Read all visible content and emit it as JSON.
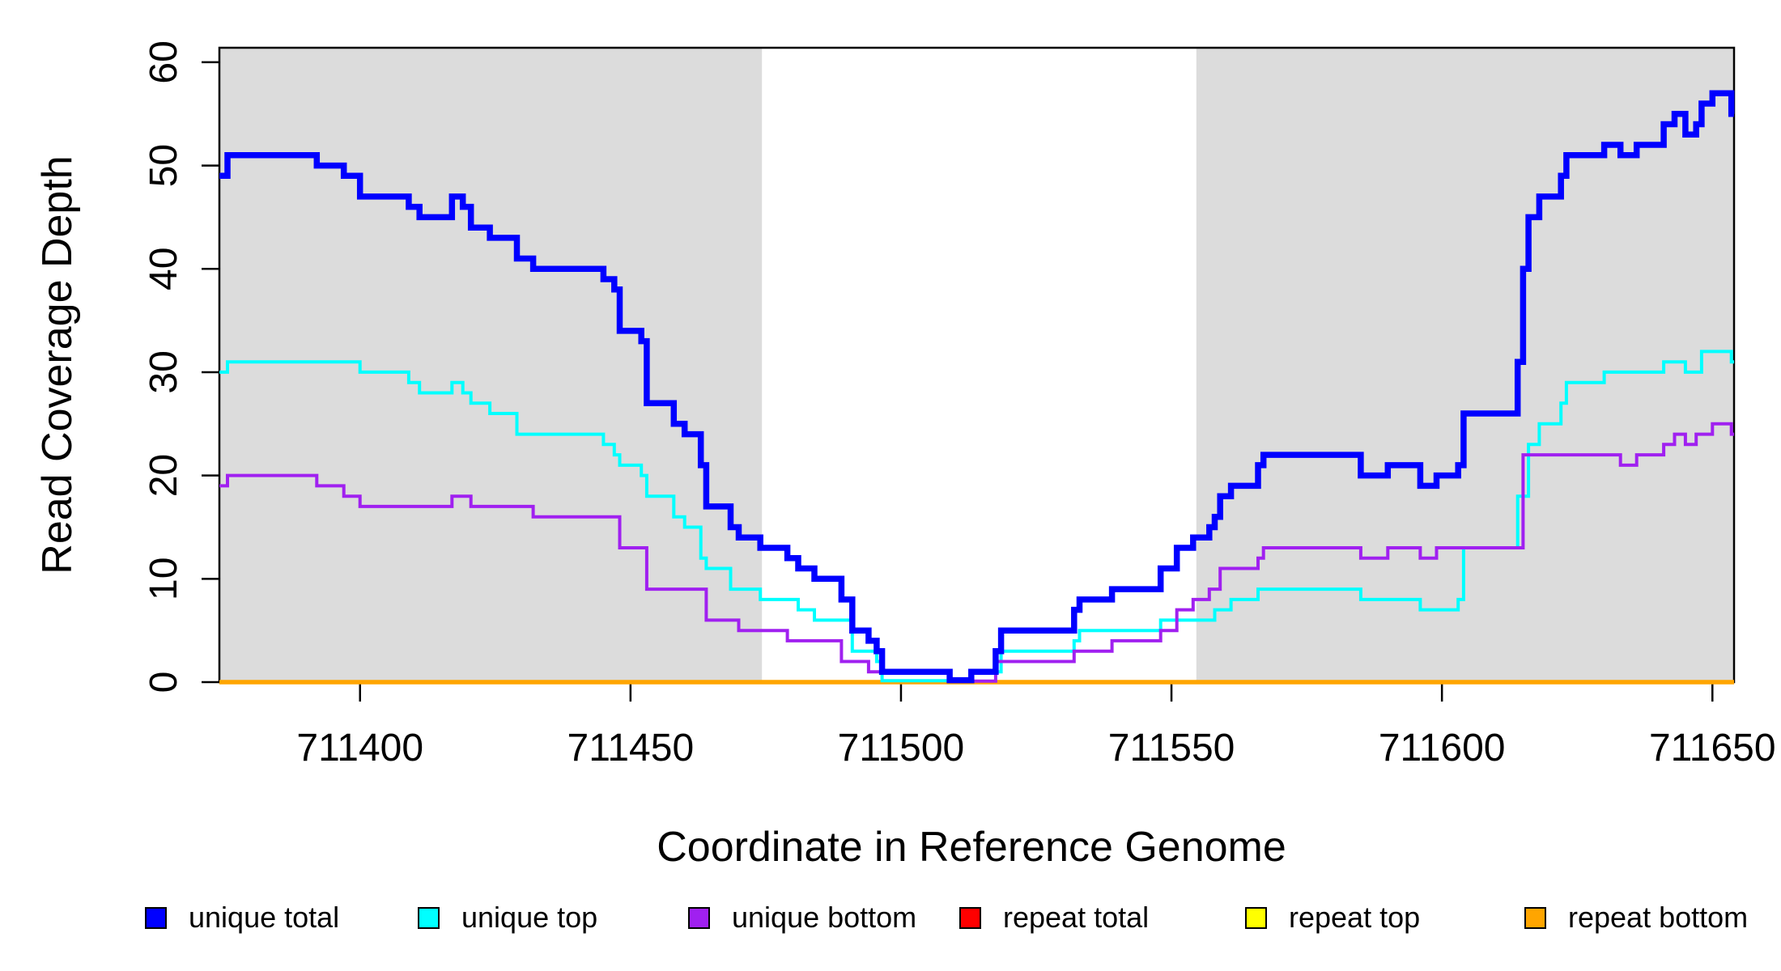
{
  "chart_data": {
    "type": "line",
    "subtype": "step-coverage-plot",
    "title": "",
    "xlabel": "Coordinate in Reference Genome",
    "ylabel": "Read Coverage Depth",
    "xlim": [
      711374,
      711654
    ],
    "ylim": [
      0,
      61.4
    ],
    "x_ticks": [
      711400,
      711450,
      711500,
      711550,
      711600,
      711650
    ],
    "y_ticks": [
      0,
      10,
      20,
      30,
      40,
      50,
      60
    ],
    "grid": "off",
    "legend_position": "bottom",
    "background_color": "#FFFFFF",
    "shaded_regions": [
      {
        "x0": 711374,
        "x1": 711474.3,
        "color": "#DCDCDC"
      },
      {
        "x0": 711554.6,
        "x1": 711654,
        "color": "#DCDCDC"
      }
    ],
    "series": [
      {
        "name": "repeat total",
        "color": "#FF0000",
        "width": 4,
        "points": [
          [
            711374,
            0
          ]
        ]
      },
      {
        "name": "repeat top",
        "color": "#FFFF00",
        "width": 4,
        "points": [
          [
            711374,
            0
          ]
        ]
      },
      {
        "name": "repeat bottom",
        "color": "#FFA500",
        "width": 5.5,
        "points": [
          [
            711374,
            0
          ]
        ]
      },
      {
        "name": "unique top",
        "color": "#00FFFF",
        "width": 4,
        "points": [
          [
            711374,
            30
          ],
          [
            711375.5,
            31
          ],
          [
            711400,
            30
          ],
          [
            711409,
            29
          ],
          [
            711411,
            28
          ],
          [
            711417,
            29
          ],
          [
            711419,
            28
          ],
          [
            711420.5,
            27
          ],
          [
            711424,
            26
          ],
          [
            711429,
            24
          ],
          [
            711445,
            23
          ],
          [
            711447,
            22
          ],
          [
            711448,
            21
          ],
          [
            711452,
            20
          ],
          [
            711453,
            18
          ],
          [
            711458,
            16
          ],
          [
            711460,
            15
          ],
          [
            711463,
            12
          ],
          [
            711464,
            11
          ],
          [
            711468.5,
            9
          ],
          [
            711474,
            8
          ],
          [
            711481,
            7
          ],
          [
            711484,
            6
          ],
          [
            711491,
            3
          ],
          [
            711495.5,
            2
          ],
          [
            711496.5,
            0
          ],
          [
            711513,
            1
          ],
          [
            711518.5,
            3
          ],
          [
            711532,
            4
          ],
          [
            711533,
            5
          ],
          [
            711548,
            6
          ],
          [
            711558,
            7
          ],
          [
            711561,
            8
          ],
          [
            711566,
            9
          ],
          [
            711585,
            8
          ],
          [
            711596,
            7
          ],
          [
            711603,
            8
          ],
          [
            711604,
            13
          ],
          [
            711614,
            18
          ],
          [
            711616,
            23
          ],
          [
            711618,
            25
          ],
          [
            711622,
            27
          ],
          [
            711623,
            29
          ],
          [
            711630,
            30
          ],
          [
            711641,
            31
          ],
          [
            711645,
            30
          ],
          [
            711648,
            32
          ],
          [
            711653.5,
            31
          ]
        ]
      },
      {
        "name": "unique bottom",
        "color": "#A020F0",
        "width": 4,
        "points": [
          [
            711374,
            19
          ],
          [
            711375.5,
            20
          ],
          [
            711392,
            19
          ],
          [
            711397,
            18
          ],
          [
            711400,
            17
          ],
          [
            711417,
            18
          ],
          [
            711420.5,
            17
          ],
          [
            711432,
            16
          ],
          [
            711448,
            13
          ],
          [
            711453,
            9
          ],
          [
            711464,
            6
          ],
          [
            711470,
            5
          ],
          [
            711479,
            4
          ],
          [
            711489,
            2
          ],
          [
            711494,
            1
          ],
          [
            711509,
            0
          ],
          [
            711517.5,
            2
          ],
          [
            711532,
            3
          ],
          [
            711539,
            4
          ],
          [
            711548,
            5
          ],
          [
            711551,
            7
          ],
          [
            711554,
            8
          ],
          [
            711557,
            9
          ],
          [
            711559,
            11
          ],
          [
            711566,
            12
          ],
          [
            711567,
            13
          ],
          [
            711585,
            12
          ],
          [
            711590,
            13
          ],
          [
            711596,
            12
          ],
          [
            711599,
            13
          ],
          [
            711615,
            22
          ],
          [
            711633,
            21
          ],
          [
            711636,
            22
          ],
          [
            711641,
            23
          ],
          [
            711643,
            24
          ],
          [
            711645,
            23
          ],
          [
            711647,
            24
          ],
          [
            711650,
            25
          ],
          [
            711653.5,
            24
          ]
        ]
      },
      {
        "name": "unique total",
        "color": "#0000FF",
        "width": 7.5,
        "points": [
          [
            711374,
            49
          ],
          [
            711375.5,
            51
          ],
          [
            711392,
            50
          ],
          [
            711397,
            49
          ],
          [
            711400,
            47
          ],
          [
            711409,
            46
          ],
          [
            711411,
            45
          ],
          [
            711417,
            47
          ],
          [
            711419,
            46
          ],
          [
            711420.5,
            44
          ],
          [
            711424,
            43
          ],
          [
            711429,
            41
          ],
          [
            711432,
            40
          ],
          [
            711445,
            39
          ],
          [
            711447,
            38
          ],
          [
            711448,
            34
          ],
          [
            711452,
            33
          ],
          [
            711453,
            27
          ],
          [
            711458,
            25
          ],
          [
            711460,
            24
          ],
          [
            711463,
            21
          ],
          [
            711464,
            17
          ],
          [
            711468.5,
            15
          ],
          [
            711470,
            14
          ],
          [
            711474,
            13
          ],
          [
            711479,
            12
          ],
          [
            711481,
            11
          ],
          [
            711484,
            10
          ],
          [
            711489,
            8
          ],
          [
            711491,
            5
          ],
          [
            711494,
            4
          ],
          [
            711495.5,
            3
          ],
          [
            711496.5,
            1
          ],
          [
            711509,
            0
          ],
          [
            711513,
            1
          ],
          [
            711517.5,
            3
          ],
          [
            711518.5,
            5
          ],
          [
            711532,
            7
          ],
          [
            711533,
            8
          ],
          [
            711539,
            9
          ],
          [
            711548,
            11
          ],
          [
            711551,
            13
          ],
          [
            711554,
            14
          ],
          [
            711557,
            15
          ],
          [
            711558,
            16
          ],
          [
            711559,
            18
          ],
          [
            711561,
            19
          ],
          [
            711566,
            21
          ],
          [
            711567,
            22
          ],
          [
            711585,
            20
          ],
          [
            711590,
            21
          ],
          [
            711596,
            19
          ],
          [
            711599,
            20
          ],
          [
            711603,
            21
          ],
          [
            711604,
            26
          ],
          [
            711614,
            31
          ],
          [
            711615,
            40
          ],
          [
            711616,
            45
          ],
          [
            711618,
            47
          ],
          [
            711622,
            49
          ],
          [
            711623,
            51
          ],
          [
            711630,
            52
          ],
          [
            711633,
            51
          ],
          [
            711636,
            52
          ],
          [
            711641,
            54
          ],
          [
            711643,
            55
          ],
          [
            711645,
            53
          ],
          [
            711647,
            54
          ],
          [
            711648,
            56
          ],
          [
            711650,
            57
          ],
          [
            711653.5,
            55
          ]
        ]
      }
    ],
    "legend": {
      "items": [
        {
          "label": "unique total",
          "color": "#0000FF"
        },
        {
          "label": "unique top",
          "color": "#00FFFF"
        },
        {
          "label": "unique bottom",
          "color": "#A020F0"
        },
        {
          "label": "repeat total",
          "color": "#FF0000"
        },
        {
          "label": "repeat top",
          "color": "#FFFF00"
        },
        {
          "label": "repeat bottom",
          "color": "#FFA500"
        }
      ]
    }
  }
}
